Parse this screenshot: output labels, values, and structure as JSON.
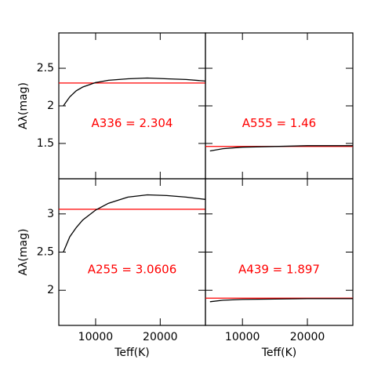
{
  "chart_data": [
    {
      "type": "line",
      "annotation": "A336 = 2.304",
      "ylabel": "Aλ(mag)",
      "x": [
        5000,
        6000,
        7000,
        8000,
        10000,
        12000,
        15000,
        18000,
        21000,
        24000,
        27000
      ],
      "values": [
        2.0,
        2.12,
        2.2,
        2.25,
        2.31,
        2.34,
        2.36,
        2.37,
        2.36,
        2.35,
        2.33
      ],
      "color": "#000000",
      "hline": 2.304,
      "hline_color": "#ff0000",
      "xlim": [
        4300,
        27000
      ],
      "ylim": [
        1.03,
        2.97
      ],
      "xticks": [
        10000,
        20000
      ],
      "yticks": [
        1.5,
        2,
        2.5
      ]
    },
    {
      "type": "line",
      "annotation": "A555 = 1.46",
      "x": [
        5000,
        7000,
        10000,
        15000,
        20000,
        27000
      ],
      "values": [
        1.4,
        1.43,
        1.45,
        1.46,
        1.47,
        1.47
      ],
      "color": "#000000",
      "hline": 1.46,
      "hline_color": "#ff0000",
      "xlim": [
        4300,
        27000
      ],
      "ylim": [
        1.03,
        2.97
      ],
      "xticks": [
        10000,
        20000
      ],
      "yticks": [
        1.5,
        2,
        2.5
      ]
    },
    {
      "type": "line",
      "annotation": "A255 = 3.0606",
      "ylabel": "Aλ(mag)",
      "xlabel": "Teff(K)",
      "x": [
        5000,
        6000,
        7000,
        8000,
        10000,
        12000,
        15000,
        18000,
        21000,
        24000,
        27000
      ],
      "values": [
        2.5,
        2.7,
        2.82,
        2.92,
        3.05,
        3.14,
        3.22,
        3.25,
        3.24,
        3.22,
        3.19
      ],
      "color": "#000000",
      "hline": 3.0606,
      "hline_color": "#ff0000",
      "xlim": [
        4300,
        27000
      ],
      "ylim": [
        1.54,
        3.46
      ],
      "xticks": [
        10000,
        20000
      ],
      "yticks": [
        2,
        2.5,
        3
      ]
    },
    {
      "type": "line",
      "annotation": "A439 = 1.897",
      "xlabel": "Teff(K)",
      "x": [
        5000,
        7000,
        10000,
        15000,
        20000,
        27000
      ],
      "values": [
        1.85,
        1.87,
        1.88,
        1.885,
        1.89,
        1.89
      ],
      "color": "#000000",
      "hline": 1.897,
      "hline_color": "#ff0000",
      "xlim": [
        4300,
        27000
      ],
      "ylim": [
        1.54,
        3.46
      ],
      "xticks": [
        10000,
        20000
      ],
      "yticks": [
        2,
        2.5,
        3
      ]
    }
  ]
}
